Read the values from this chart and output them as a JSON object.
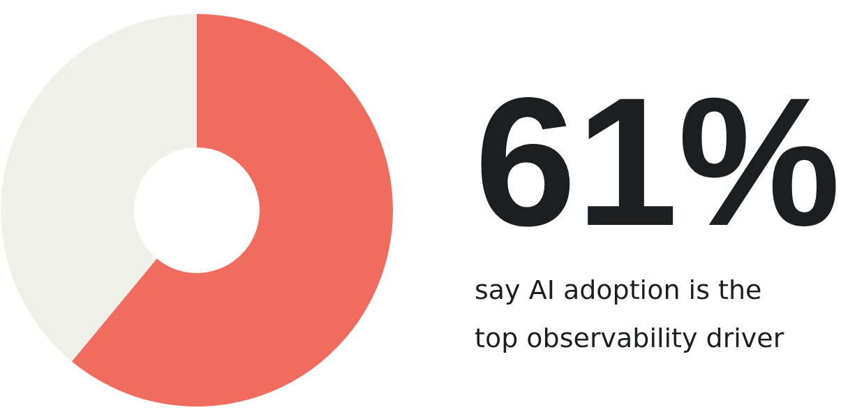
{
  "chart_data": {
    "type": "donut",
    "categories": [
      null,
      null
    ],
    "values": [
      61,
      39
    ],
    "colors": [
      "#f06c5e",
      "#f0f0eb"
    ],
    "annotations": [
      "61%",
      "say AI adoption is the top observability driver"
    ]
  }
}
